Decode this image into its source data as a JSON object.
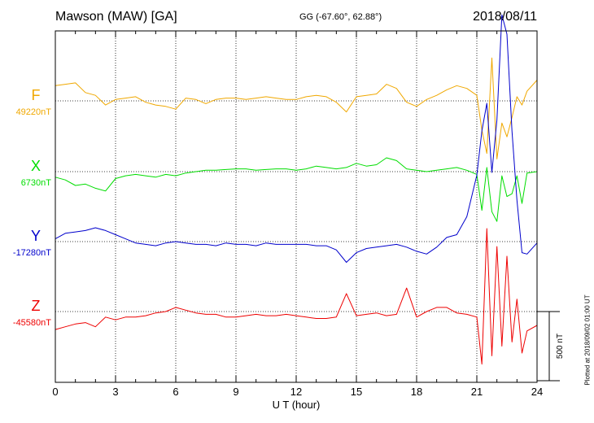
{
  "header": {
    "station": "Mawson (MAW)  [GA]",
    "coords": "GG (-67.60°,  62.88°)",
    "date": "2018/08/11"
  },
  "footer_note": "Plotted at 2018/09/02 01:00 UT",
  "colors": {
    "F": "#f0a800",
    "X": "#00dd00",
    "Y": "#0000cc",
    "Z": "#ee0000"
  },
  "chart_data": {
    "type": "line",
    "title": "",
    "xlabel": "U T (hour)",
    "ylabel": "",
    "xlim": [
      0,
      24
    ],
    "xticks": [
      0,
      3,
      6,
      9,
      12,
      15,
      18,
      21,
      24
    ],
    "xtick_labels": [
      "0",
      "3",
      "6",
      "9",
      "12",
      "15",
      "18",
      "21",
      "24"
    ],
    "grid": true,
    "scale_bar": {
      "label": "500 nT",
      "value_nT": 500
    },
    "x": [
      0,
      0.5,
      1,
      1.5,
      2,
      2.5,
      3,
      3.5,
      4,
      4.5,
      5,
      5.5,
      6,
      6.5,
      7,
      7.5,
      8,
      8.5,
      9,
      9.5,
      10,
      10.5,
      11,
      11.5,
      12,
      12.5,
      13,
      13.5,
      14,
      14.5,
      15,
      15.5,
      16,
      16.5,
      17,
      17.5,
      18,
      18.5,
      19,
      19.5,
      20,
      20.5,
      21,
      21.25,
      21.5,
      21.75,
      22,
      22.25,
      22.5,
      22.75,
      23,
      23.25,
      23.5,
      24
    ],
    "series": [
      {
        "name": "F",
        "baseline_label": "49220nT",
        "values": [
          110,
          120,
          130,
          60,
          40,
          -30,
          10,
          20,
          30,
          -10,
          -30,
          -40,
          -60,
          20,
          10,
          -20,
          10,
          20,
          20,
          10,
          20,
          30,
          20,
          10,
          10,
          30,
          40,
          30,
          -10,
          -80,
          30,
          40,
          50,
          120,
          90,
          -10,
          -40,
          10,
          40,
          80,
          110,
          90,
          40,
          -210,
          -380,
          310,
          -420,
          -160,
          -260,
          -120,
          30,
          -30,
          70,
          150
        ]
      },
      {
        "name": "X",
        "baseline_label": "6730nT",
        "values": [
          -40,
          -60,
          -100,
          -90,
          -120,
          -140,
          -50,
          -30,
          -20,
          -30,
          -40,
          -20,
          -30,
          -10,
          0,
          10,
          10,
          15,
          20,
          20,
          10,
          15,
          20,
          20,
          10,
          20,
          40,
          30,
          20,
          30,
          60,
          40,
          50,
          100,
          80,
          20,
          10,
          0,
          10,
          20,
          30,
          10,
          -20,
          -280,
          30,
          -290,
          -360,
          -30,
          -180,
          -160,
          -30,
          -230,
          -10,
          0
        ]
      },
      {
        "name": "Y",
        "baseline_label": "-17280nT",
        "values": [
          20,
          60,
          70,
          80,
          100,
          80,
          50,
          20,
          -10,
          -20,
          -30,
          -10,
          0,
          -10,
          -20,
          -20,
          -30,
          -10,
          -20,
          -20,
          -30,
          -10,
          -20,
          -20,
          -20,
          -20,
          -30,
          -30,
          -60,
          -150,
          -80,
          -50,
          -40,
          -30,
          -20,
          -40,
          -70,
          -90,
          -40,
          30,
          50,
          180,
          480,
          800,
          1000,
          500,
          880,
          1640,
          1500,
          800,
          300,
          -80,
          -90,
          -10
        ]
      },
      {
        "name": "Z",
        "baseline_label": "-45580nT",
        "values": [
          -130,
          -110,
          -90,
          -80,
          -110,
          -40,
          -60,
          -40,
          -40,
          -30,
          -10,
          0,
          30,
          10,
          -10,
          -20,
          -20,
          -40,
          -40,
          -30,
          -20,
          -30,
          -30,
          -20,
          -30,
          -40,
          -50,
          -50,
          -40,
          130,
          -30,
          -20,
          -10,
          -30,
          -20,
          170,
          -40,
          0,
          30,
          30,
          -10,
          -20,
          -40,
          -380,
          600,
          -320,
          470,
          -250,
          400,
          -220,
          90,
          -300,
          -140,
          -100
        ]
      }
    ]
  }
}
